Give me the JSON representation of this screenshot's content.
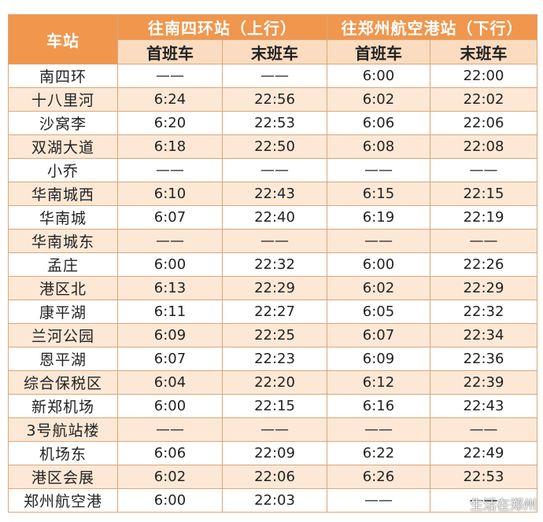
{
  "header": {
    "station_col": "车站",
    "direction_up": "往南四环站（上行）",
    "direction_down": "往郑州航空港站（下行）",
    "first_train": "首班车",
    "last_train": "末班车"
  },
  "rows": [
    {
      "station": "南四环",
      "up_first": "——",
      "up_last": "——",
      "down_first": "6:00",
      "down_last": "22:00"
    },
    {
      "station": "十八里河",
      "up_first": "6:24",
      "up_last": "22:56",
      "down_first": "6:02",
      "down_last": "22:02"
    },
    {
      "station": "沙窝李",
      "up_first": "6:20",
      "up_last": "22:53",
      "down_first": "6:06",
      "down_last": "22:06"
    },
    {
      "station": "双湖大道",
      "up_first": "6:18",
      "up_last": "22:50",
      "down_first": "6:08",
      "down_last": "22:08"
    },
    {
      "station": "小乔",
      "up_first": "——",
      "up_last": "——",
      "down_first": "——",
      "down_last": "——"
    },
    {
      "station": "华南城西",
      "up_first": "6:10",
      "up_last": "22:43",
      "down_first": "6:15",
      "down_last": "22:15"
    },
    {
      "station": "华南城",
      "up_first": "6:07",
      "up_last": "22:40",
      "down_first": "6:19",
      "down_last": "22:19"
    },
    {
      "station": "华南城东",
      "up_first": "——",
      "up_last": "——",
      "down_first": "——",
      "down_last": "——"
    },
    {
      "station": "孟庄",
      "up_first": "6:00",
      "up_last": "22:32",
      "down_first": "6:00",
      "down_last": "22:26"
    },
    {
      "station": "港区北",
      "up_first": "6:13",
      "up_last": "22:29",
      "down_first": "6:02",
      "down_last": "22:29"
    },
    {
      "station": "康平湖",
      "up_first": "6:11",
      "up_last": "22:27",
      "down_first": "6:05",
      "down_last": "22:32"
    },
    {
      "station": "兰河公园",
      "up_first": "6:09",
      "up_last": "22:25",
      "down_first": "6:07",
      "down_last": "22:34"
    },
    {
      "station": "恩平湖",
      "up_first": "6:07",
      "up_last": "22:23",
      "down_first": "6:09",
      "down_last": "22:36"
    },
    {
      "station": "综合保税区",
      "up_first": "6:04",
      "up_last": "22:20",
      "down_first": "6:12",
      "down_last": "22:39"
    },
    {
      "station": "新郑机场",
      "up_first": "6:00",
      "up_last": "22:15",
      "down_first": "6:16",
      "down_last": "22:43"
    },
    {
      "station": "3号航站楼",
      "up_first": "——",
      "up_last": "——",
      "down_first": "——",
      "down_last": "——"
    },
    {
      "station": "机场东",
      "up_first": "6:06",
      "up_last": "22:09",
      "down_first": "6:22",
      "down_last": "22:49"
    },
    {
      "station": "港区会展",
      "up_first": "6:02",
      "up_last": "22:06",
      "down_first": "6:26",
      "down_last": "22:53"
    },
    {
      "station": "郑州航空港",
      "up_first": "6:00",
      "up_last": "22:03",
      "down_first": "——",
      "down_last": "——"
    }
  ],
  "watermark": {
    "text": "生活在郑州",
    "icon": "weibo-icon"
  },
  "colors": {
    "header_bg": "#f0964d",
    "subheader_bg": "#fbdcc0",
    "stripe_bg": "#fde8d6",
    "border": "#d9a777"
  }
}
